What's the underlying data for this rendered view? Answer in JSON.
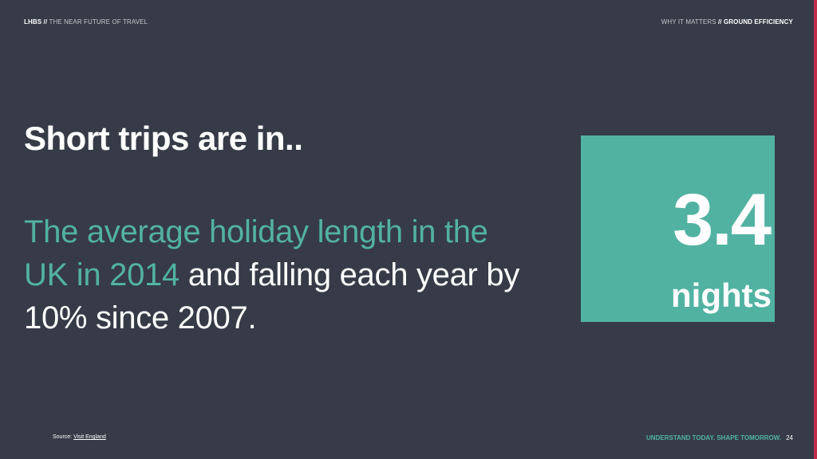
{
  "header": {
    "brand": "LHBS",
    "separator": " // ",
    "deck_title": "THE NEAR FUTURE OF TRAVEL",
    "section": "WHY IT MATTERS",
    "section_separator": " // ",
    "subsection": "GROUND EFFICIENCY"
  },
  "title": "Short trips are in..",
  "body": {
    "highlight": "The average holiday length in the UK in 2014",
    "rest": " and falling each year by 10% since 2007."
  },
  "stat": {
    "value": "3.4",
    "unit": "nights"
  },
  "source": {
    "label": "Source: ",
    "link": "Visit England"
  },
  "footer": {
    "tagline": "UNDERSTAND TODAY. SHAPE TOMORROW.",
    "page_number": "24"
  },
  "colors": {
    "background": "#363b47",
    "accent": "#52b2a2",
    "edge_accent": "#c22c48"
  }
}
